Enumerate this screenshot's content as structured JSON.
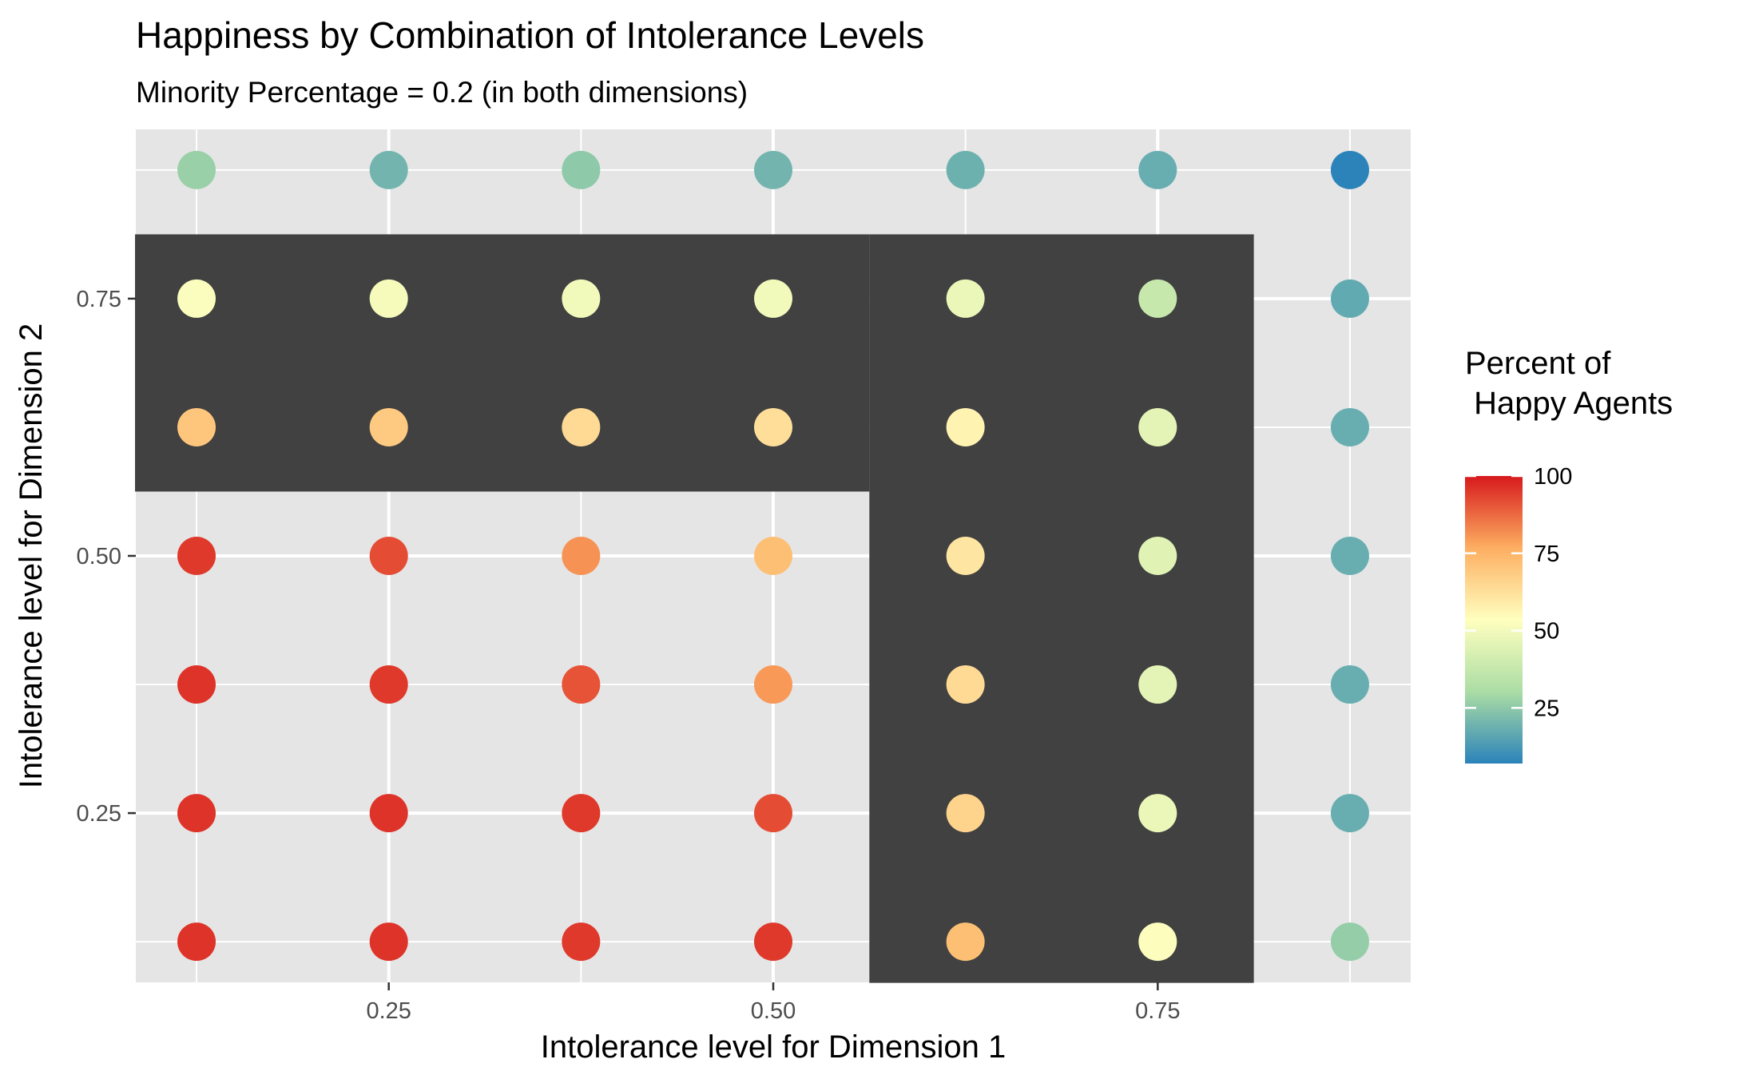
{
  "chart_data": {
    "type": "scatter",
    "title": "Happiness by Combination of Intolerance Levels",
    "subtitle": "Minority Percentage = 0.2 (in both dimensions)",
    "xlabel": "Intolerance level for Dimension 1",
    "ylabel": "Intolerance level for Dimension 2",
    "xlim": [
      0.0855,
      0.9145
    ],
    "ylim": [
      0.0855,
      0.9145
    ],
    "x_ticks": [
      0.25,
      0.5,
      0.75
    ],
    "y_ticks": [
      0.25,
      0.5,
      0.75
    ],
    "x_tick_labels": [
      "0.25",
      "0.50",
      "0.75"
    ],
    "y_tick_labels": [
      "0.25",
      "0.50",
      "0.75"
    ],
    "grid": true,
    "legend": {
      "title_lines": [
        "Percent of",
        " Happy Agents"
      ],
      "placement": "right",
      "range": [
        7,
        100
      ],
      "ticks": [
        100,
        75,
        50,
        25
      ],
      "tick_labels": [
        "100",
        "75",
        "50",
        "25"
      ],
      "palette": "Spectral"
    },
    "highlight_region": {
      "color": "#414141",
      "segments": [
        {
          "x": [
            0.085,
            0.5625
          ],
          "y": [
            0.5625,
            0.8125
          ]
        },
        {
          "x": [
            0.5625,
            0.8125
          ],
          "y": [
            0.085,
            0.8125
          ]
        }
      ]
    },
    "x_levels": [
      0.125,
      0.25,
      0.375,
      0.5,
      0.625,
      0.75,
      0.875
    ],
    "y_levels": [
      0.125,
      0.25,
      0.375,
      0.5,
      0.625,
      0.75,
      0.875
    ],
    "values_by_row": [
      [
        96,
        96,
        95,
        95,
        72,
        53,
        26
      ],
      [
        96,
        96,
        95,
        92,
        66,
        48,
        18
      ],
      [
        96,
        95,
        91,
        80,
        64,
        46,
        18
      ],
      [
        95,
        92,
        81,
        72,
        61,
        45,
        18
      ],
      [
        70,
        69,
        64,
        63,
        57,
        46,
        18
      ],
      [
        52,
        51,
        50,
        50,
        48,
        38,
        17
      ],
      [
        27,
        20,
        25,
        20,
        19,
        18,
        7
      ]
    ]
  }
}
